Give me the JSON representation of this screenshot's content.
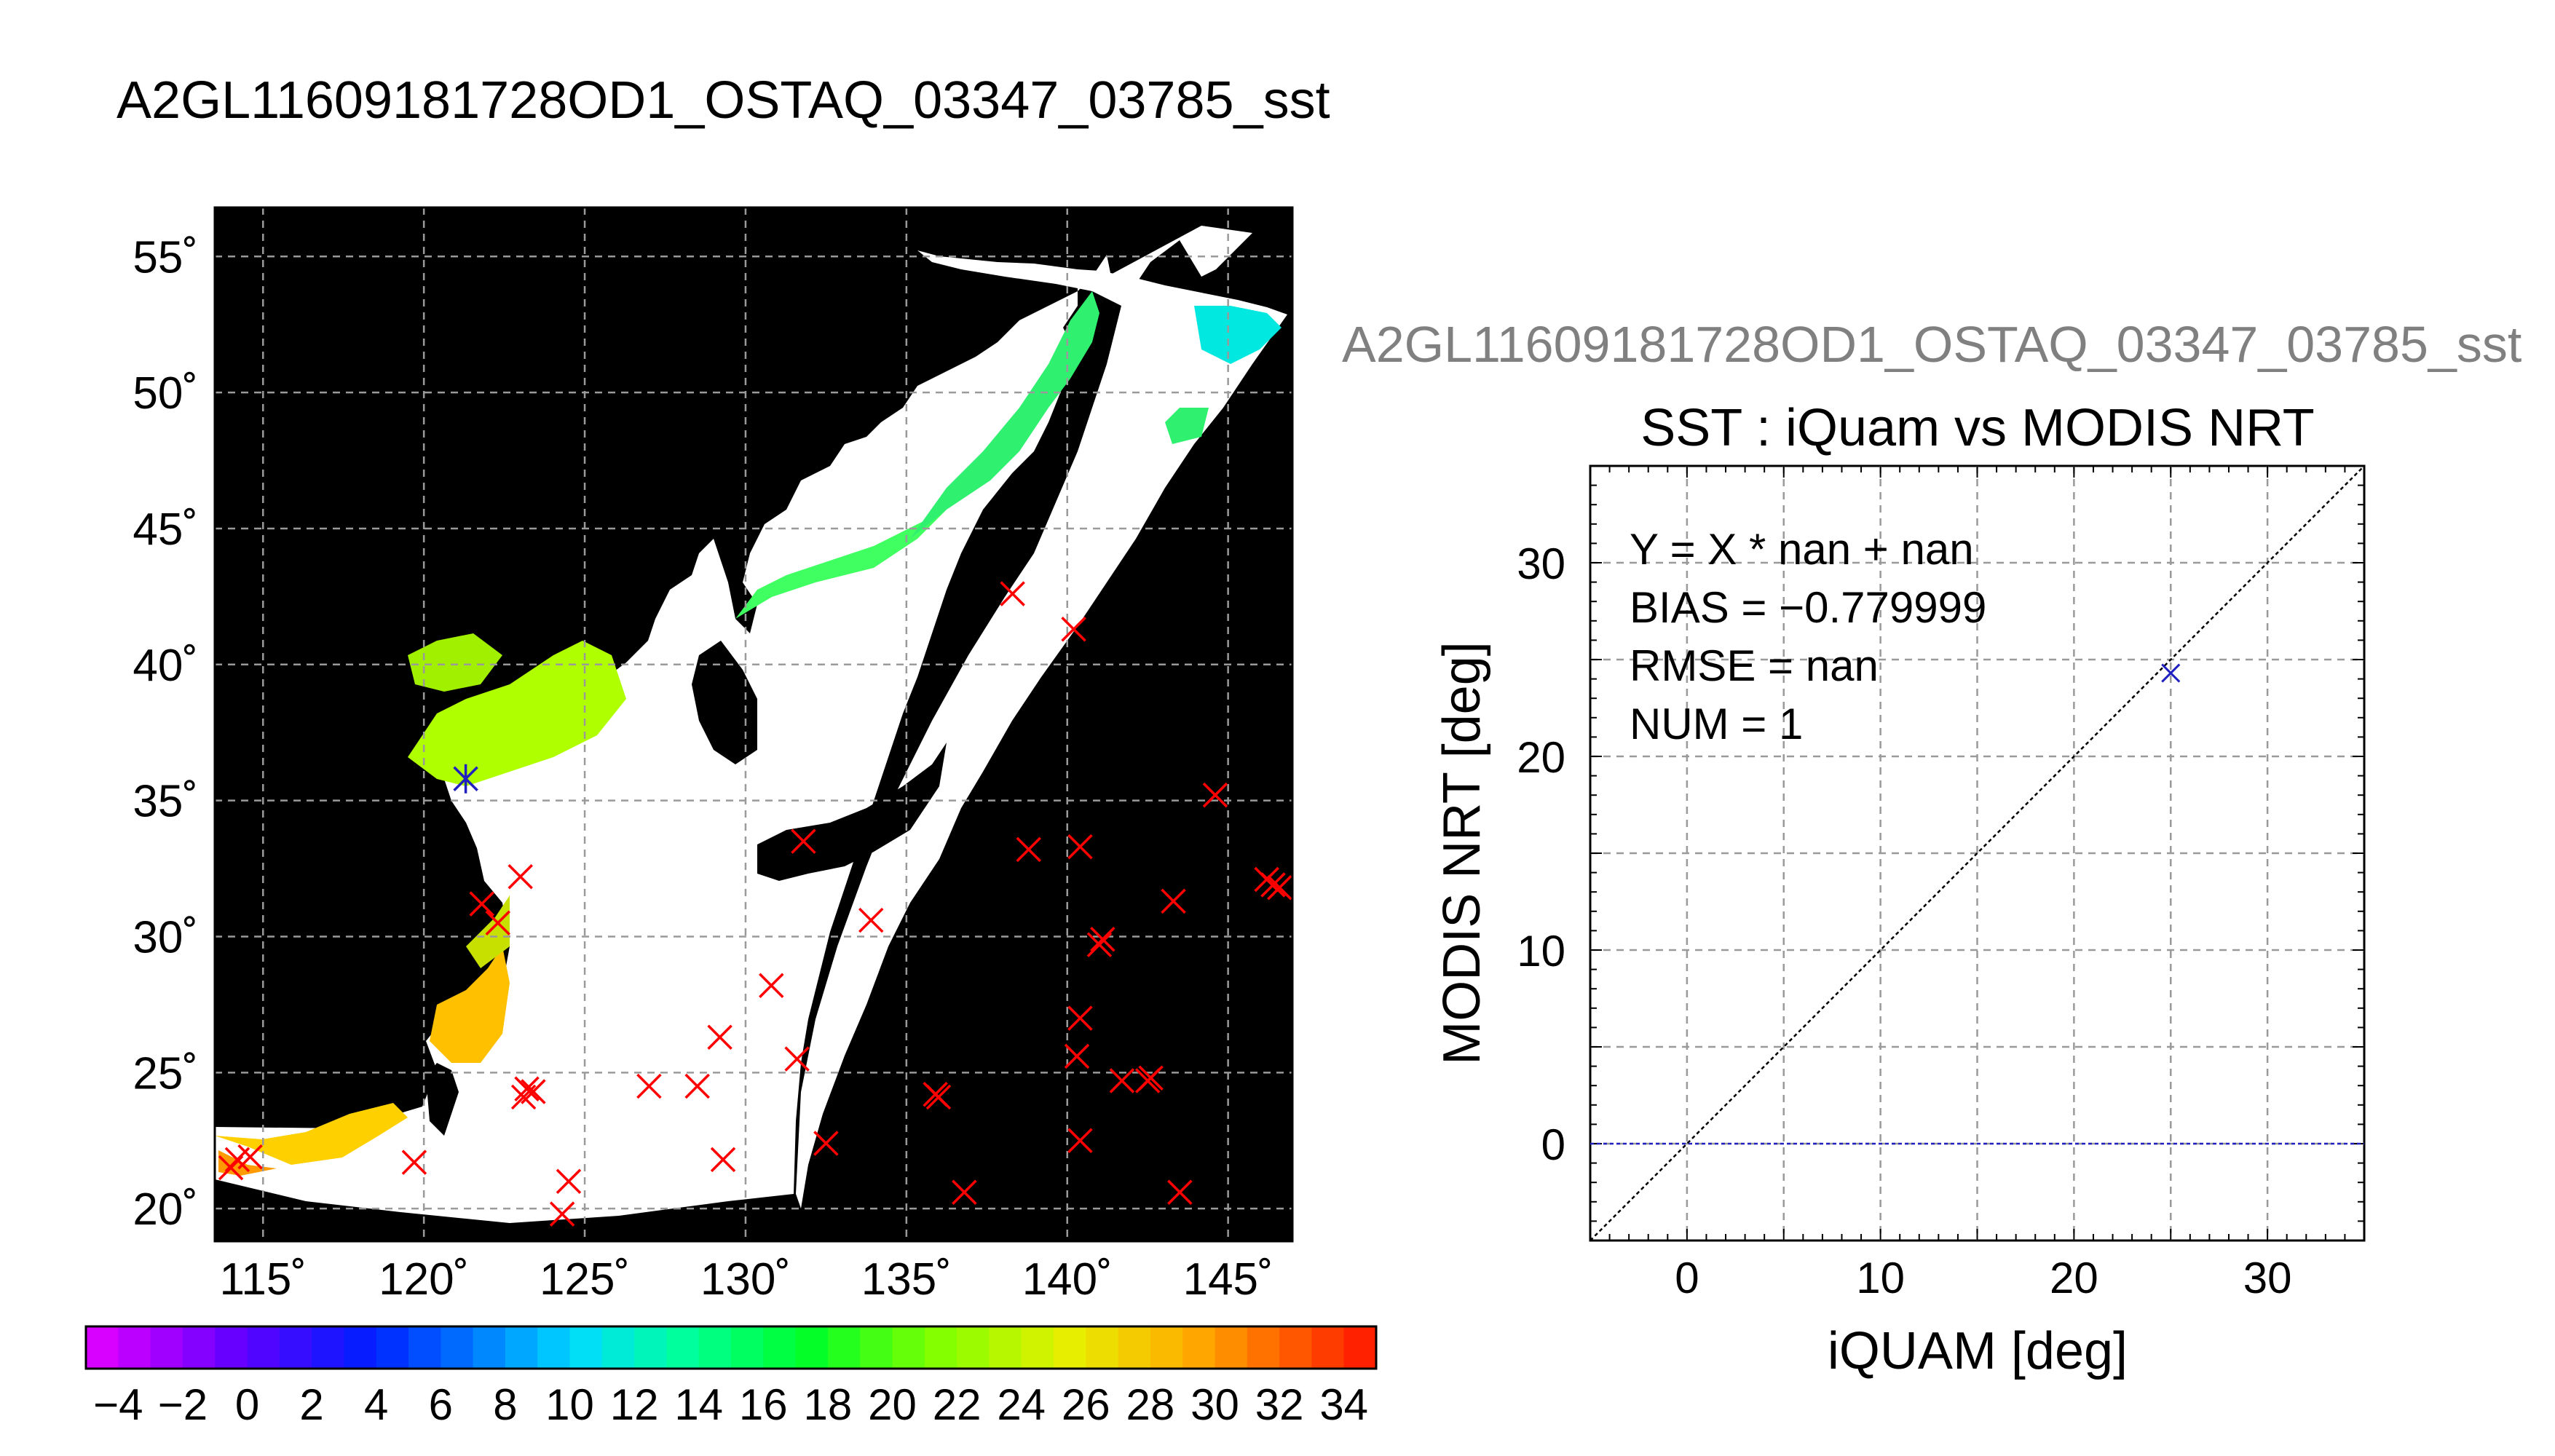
{
  "page": {
    "main_title": "A2GL11609181728OD1_OSTAQ_03347_03785_sst",
    "scatter_title_gray": "A2GL11609181728OD1_OSTAQ_03347_03785_sst"
  },
  "colors": {
    "land": "#000000",
    "cloud": "#ffffff",
    "matchup_red": "#ff0000",
    "matchup_blue": "#2020c0",
    "grid": "#9a9a9a"
  },
  "chart_data": [
    {
      "type": "map",
      "lon_ticks": [
        115,
        120,
        125,
        130,
        135,
        140,
        145
      ],
      "lat_ticks": [
        20,
        25,
        30,
        35,
        40,
        45,
        50,
        55
      ],
      "lon_tick_labels": [
        "115˚",
        "120˚",
        "125˚",
        "130˚",
        "135˚",
        "140˚",
        "145˚"
      ],
      "lat_tick_labels": [
        "20˚",
        "25˚",
        "30˚",
        "35˚",
        "40˚",
        "45˚",
        "50˚",
        "55˚"
      ],
      "xlim": [
        113.5,
        147
      ],
      "ylim": [
        18.8,
        56.8
      ],
      "grid": true,
      "red_markers": [
        [
          114.2,
          21.8
        ],
        [
          114.0,
          21.5
        ],
        [
          114.6,
          21.9
        ],
        [
          119.7,
          21.7
        ],
        [
          121.8,
          31.2
        ],
        [
          122.3,
          30.5
        ],
        [
          123.0,
          32.2
        ],
        [
          123.2,
          24.4
        ],
        [
          123.1,
          24.1
        ],
        [
          123.4,
          24.3
        ],
        [
          124.5,
          21.0
        ],
        [
          124.3,
          19.8
        ],
        [
          127.0,
          24.5
        ],
        [
          128.5,
          24.5
        ],
        [
          129.2,
          26.3
        ],
        [
          129.3,
          21.8
        ],
        [
          130.8,
          28.2
        ],
        [
          131.6,
          25.5
        ],
        [
          131.8,
          33.5
        ],
        [
          132.5,
          22.4
        ],
        [
          133.9,
          30.6
        ],
        [
          136.0,
          24.1
        ],
        [
          135.9,
          24.2
        ],
        [
          136.8,
          20.6
        ],
        [
          138.3,
          42.6
        ],
        [
          138.8,
          33.2
        ],
        [
          140.2,
          41.3
        ],
        [
          140.4,
          33.3
        ],
        [
          140.4,
          27.0
        ],
        [
          140.3,
          25.6
        ],
        [
          140.4,
          22.5
        ],
        [
          141.1,
          29.9
        ],
        [
          141.0,
          29.7
        ],
        [
          141.7,
          24.7
        ],
        [
          142.6,
          24.8
        ],
        [
          142.5,
          24.7
        ],
        [
          143.3,
          31.3
        ],
        [
          143.5,
          20.6
        ],
        [
          144.6,
          35.2
        ],
        [
          146.2,
          32.1
        ],
        [
          146.6,
          31.8
        ],
        [
          146.4,
          31.9
        ]
      ],
      "blue_markers": [
        [
          121.3,
          35.8
        ]
      ]
    },
    {
      "type": "colorbar",
      "tick_labels": [
        "−4",
        "−2",
        "0",
        "2",
        "4",
        "6",
        "8",
        "10",
        "12",
        "14",
        "16",
        "18",
        "20",
        "22",
        "24",
        "26",
        "28",
        "30",
        "32",
        "34"
      ],
      "range": [
        -5,
        35
      ],
      "step": 2
    },
    {
      "type": "scatter",
      "title": "SST : iQuam vs MODIS NRT",
      "xlabel": "iQUAM [deg]",
      "ylabel": "MODIS NRT [deg]",
      "xlim": [
        -5,
        35
      ],
      "ylim": [
        -5,
        35
      ],
      "x_ticks": [
        0,
        10,
        20,
        30
      ],
      "y_ticks": [
        0,
        10,
        20,
        30
      ],
      "x_tick_labels": [
        "0",
        "10",
        "20",
        "30"
      ],
      "y_tick_labels": [
        "0",
        "10",
        "20",
        "30"
      ],
      "grid": true,
      "points": [
        {
          "x": 25,
          "y": 24.3
        }
      ],
      "stats": [
        "Y = X * nan + nan",
        "BIAS = −0.779999",
        "RMSE = nan",
        "NUM = 1"
      ]
    }
  ]
}
